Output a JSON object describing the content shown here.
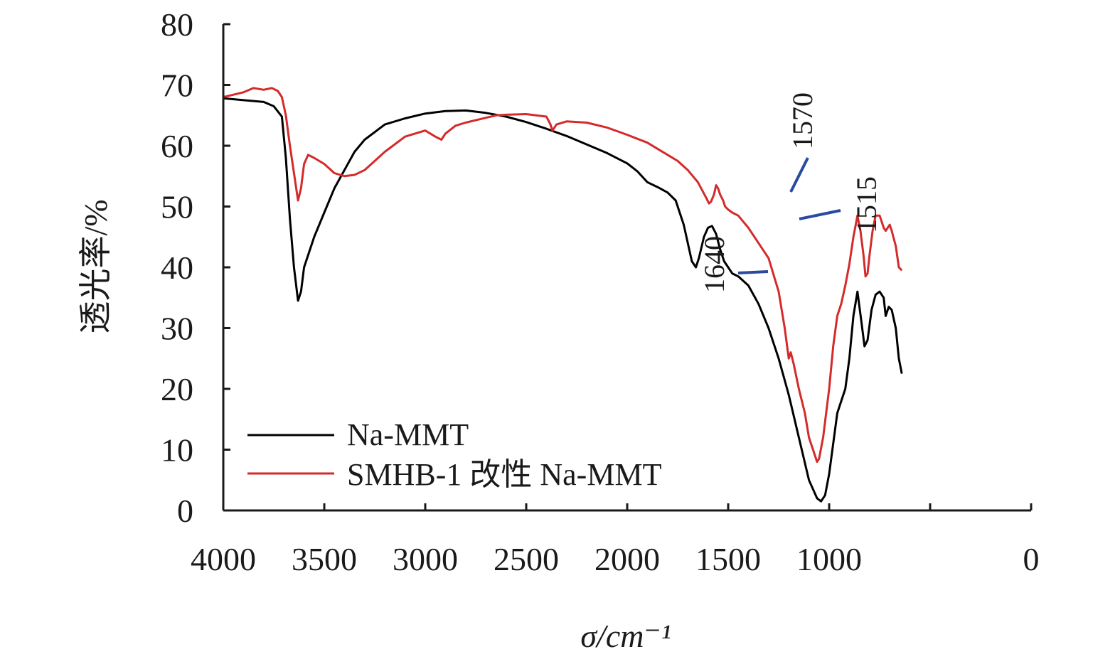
{
  "chart_data": {
    "type": "line",
    "title": "",
    "xlabel": "σ/cm⁻¹",
    "ylabel": "透光率/%",
    "xlim": [
      4000,
      0
    ],
    "ylim": [
      0,
      80
    ],
    "x_reversed": true,
    "x_ticks": [
      4000,
      3500,
      3000,
      2500,
      2000,
      1500,
      1000,
      0
    ],
    "x_tick_labels": [
      "4000",
      "3500",
      "3000",
      "2500",
      "2000",
      "1500",
      "1000",
      "0"
    ],
    "y_ticks": [
      0,
      10,
      20,
      30,
      40,
      50,
      60,
      70,
      80
    ],
    "y_tick_labels": [
      "0",
      "10",
      "20",
      "30",
      "40",
      "50",
      "60",
      "70",
      "80"
    ],
    "grid": false,
    "legend_position": "bottom-left",
    "series": [
      {
        "name": "Na-MMT",
        "color": "#000000",
        "points": [
          [
            4000,
            67.8
          ],
          [
            3900,
            67.5
          ],
          [
            3800,
            67.2
          ],
          [
            3750,
            66.5
          ],
          [
            3710,
            64.8
          ],
          [
            3690,
            58
          ],
          [
            3670,
            48
          ],
          [
            3650,
            40
          ],
          [
            3630,
            34.5
          ],
          [
            3615,
            36
          ],
          [
            3600,
            40
          ],
          [
            3580,
            42
          ],
          [
            3550,
            45
          ],
          [
            3500,
            49
          ],
          [
            3450,
            53
          ],
          [
            3400,
            56
          ],
          [
            3350,
            59
          ],
          [
            3300,
            61
          ],
          [
            3200,
            63.5
          ],
          [
            3100,
            64.5
          ],
          [
            3000,
            65.3
          ],
          [
            2900,
            65.7
          ],
          [
            2800,
            65.8
          ],
          [
            2700,
            65.4
          ],
          [
            2600,
            64.8
          ],
          [
            2500,
            63.9
          ],
          [
            2400,
            62.8
          ],
          [
            2300,
            61.6
          ],
          [
            2200,
            60.2
          ],
          [
            2100,
            58.8
          ],
          [
            2000,
            57.1
          ],
          [
            1950,
            55.8
          ],
          [
            1900,
            54
          ],
          [
            1850,
            53.2
          ],
          [
            1800,
            52.3
          ],
          [
            1760,
            51
          ],
          [
            1740,
            49
          ],
          [
            1720,
            47
          ],
          [
            1700,
            44
          ],
          [
            1680,
            41
          ],
          [
            1660,
            40
          ],
          [
            1645,
            41.5
          ],
          [
            1620,
            45
          ],
          [
            1600,
            46.5
          ],
          [
            1580,
            46.8
          ],
          [
            1560,
            45.5
          ],
          [
            1540,
            43
          ],
          [
            1520,
            41
          ],
          [
            1500,
            40
          ],
          [
            1480,
            39
          ],
          [
            1450,
            38.5
          ],
          [
            1400,
            37
          ],
          [
            1350,
            34
          ],
          [
            1300,
            30
          ],
          [
            1250,
            25
          ],
          [
            1200,
            19
          ],
          [
            1150,
            12
          ],
          [
            1100,
            5
          ],
          [
            1060,
            2
          ],
          [
            1040,
            1.5
          ],
          [
            1020,
            2.5
          ],
          [
            1000,
            6
          ],
          [
            980,
            11
          ],
          [
            960,
            16
          ],
          [
            940,
            18
          ],
          [
            920,
            20
          ],
          [
            900,
            25
          ],
          [
            880,
            32
          ],
          [
            860,
            36
          ],
          [
            840,
            31
          ],
          [
            825,
            27
          ],
          [
            810,
            28
          ],
          [
            790,
            33
          ],
          [
            770,
            35.5
          ],
          [
            750,
            36
          ],
          [
            730,
            35
          ],
          [
            720,
            32
          ],
          [
            705,
            33.5
          ],
          [
            690,
            33
          ],
          [
            670,
            30
          ],
          [
            655,
            25
          ],
          [
            640,
            22.5
          ]
        ]
      },
      {
        "name": "SMHB-1 改性 Na-MMT",
        "color": "#d42a2a",
        "points": [
          [
            4000,
            68
          ],
          [
            3900,
            68.8
          ],
          [
            3850,
            69.5
          ],
          [
            3800,
            69.2
          ],
          [
            3760,
            69.5
          ],
          [
            3730,
            69
          ],
          [
            3710,
            68
          ],
          [
            3690,
            65
          ],
          [
            3670,
            60
          ],
          [
            3650,
            55.5
          ],
          [
            3630,
            51
          ],
          [
            3615,
            53
          ],
          [
            3600,
            57
          ],
          [
            3580,
            58.5
          ],
          [
            3550,
            58
          ],
          [
            3500,
            57
          ],
          [
            3450,
            55.5
          ],
          [
            3400,
            55
          ],
          [
            3350,
            55.2
          ],
          [
            3300,
            56
          ],
          [
            3250,
            57.5
          ],
          [
            3200,
            59
          ],
          [
            3100,
            61.5
          ],
          [
            3000,
            62.5
          ],
          [
            2950,
            61.5
          ],
          [
            2920,
            61
          ],
          [
            2900,
            62
          ],
          [
            2850,
            63.3
          ],
          [
            2800,
            63.8
          ],
          [
            2750,
            64.2
          ],
          [
            2700,
            64.6
          ],
          [
            2650,
            65
          ],
          [
            2600,
            65.1
          ],
          [
            2500,
            65.2
          ],
          [
            2450,
            65
          ],
          [
            2400,
            64.8
          ],
          [
            2380,
            63.5
          ],
          [
            2370,
            62.5
          ],
          [
            2350,
            63.5
          ],
          [
            2300,
            64
          ],
          [
            2200,
            63.8
          ],
          [
            2100,
            63
          ],
          [
            2000,
            61.8
          ],
          [
            1900,
            60.5
          ],
          [
            1850,
            59.5
          ],
          [
            1800,
            58.5
          ],
          [
            1750,
            57.5
          ],
          [
            1700,
            56
          ],
          [
            1650,
            54
          ],
          [
            1610,
            51.5
          ],
          [
            1595,
            50.5
          ],
          [
            1585,
            50.8
          ],
          [
            1570,
            52
          ],
          [
            1560,
            53.5
          ],
          [
            1550,
            53
          ],
          [
            1540,
            52
          ],
          [
            1525,
            51
          ],
          [
            1515,
            50
          ],
          [
            1500,
            49.5
          ],
          [
            1480,
            49
          ],
          [
            1450,
            48.5
          ],
          [
            1400,
            46.5
          ],
          [
            1350,
            44
          ],
          [
            1300,
            41.5
          ],
          [
            1250,
            36
          ],
          [
            1220,
            30
          ],
          [
            1200,
            25
          ],
          [
            1190,
            26
          ],
          [
            1175,
            24
          ],
          [
            1150,
            20
          ],
          [
            1120,
            16
          ],
          [
            1100,
            12
          ],
          [
            1080,
            10
          ],
          [
            1060,
            8
          ],
          [
            1050,
            8.5
          ],
          [
            1030,
            12
          ],
          [
            1000,
            20
          ],
          [
            980,
            27
          ],
          [
            960,
            32
          ],
          [
            940,
            34
          ],
          [
            920,
            37
          ],
          [
            900,
            40.5
          ],
          [
            880,
            45
          ],
          [
            860,
            48.5
          ],
          [
            845,
            46
          ],
          [
            830,
            42
          ],
          [
            820,
            38.5
          ],
          [
            810,
            39
          ],
          [
            800,
            42
          ],
          [
            785,
            46
          ],
          [
            770,
            48.5
          ],
          [
            750,
            48.5
          ],
          [
            730,
            46.5
          ],
          [
            720,
            46
          ],
          [
            700,
            47
          ],
          [
            690,
            46
          ],
          [
            670,
            43.5
          ],
          [
            655,
            40
          ],
          [
            640,
            39.5
          ]
        ]
      }
    ],
    "legend": [
      {
        "label": "Na-MMT",
        "color": "#000000"
      },
      {
        "label": "SMHB-1 改性 Na-MMT",
        "color": "#d42a2a"
      }
    ],
    "annotations": [
      {
        "text": "1640",
        "line_color": "#2a4aa0",
        "rotated": true
      },
      {
        "text": "1570",
        "line_color": "#2a4aa0",
        "rotated": true
      },
      {
        "text": "1515",
        "line_color": "#2a4aa0",
        "rotated": true
      }
    ]
  }
}
